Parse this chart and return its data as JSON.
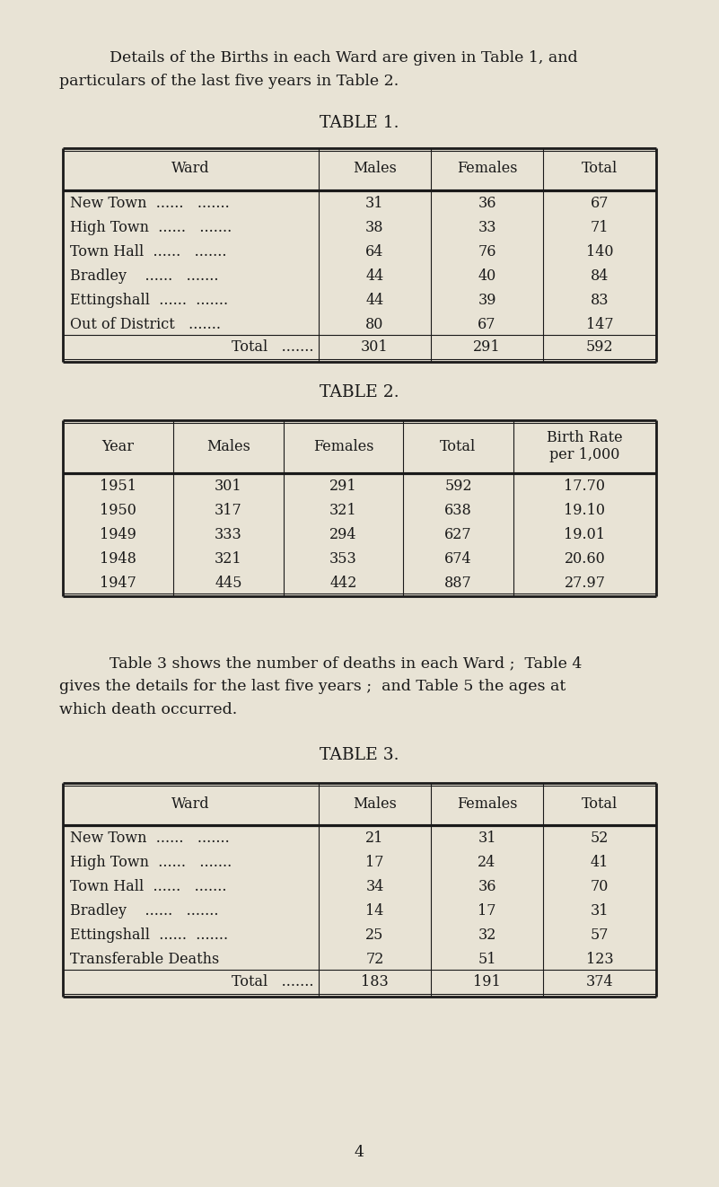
{
  "bg_color": "#e8e3d5",
  "text_color": "#1a1a1a",
  "intro_line1": "    Details of the Births in each Ward are given in Table 1, and",
  "intro_line2": "particulars of the last five years in Table 2.",
  "table1_title": "TABLE 1.",
  "table1_headers": [
    "Ward",
    "Males",
    "Females",
    "Total"
  ],
  "table1_col1_rows": [
    "New Town  ......   .......",
    "High Town  ......   .......",
    "Town Hall  ......   .......",
    "Bradley    ......   .......",
    "Ettingshall  ......  .......",
    "Out of District   ......."
  ],
  "table1_col2_rows": [
    "31",
    "38",
    "64",
    "44",
    "44",
    "80"
  ],
  "table1_col3_rows": [
    "36",
    "33",
    "76",
    "40",
    "39",
    "67"
  ],
  "table1_col4_rows": [
    "67",
    "71",
    "140",
    "84",
    "83",
    "147"
  ],
  "table1_total": [
    "Total   .......",
    "301",
    "291",
    "592"
  ],
  "table2_title": "TABLE 2.",
  "table2_headers": [
    "Year",
    "Males",
    "Females",
    "Total",
    "Birth Rate\nper 1,000"
  ],
  "table2_col1_rows": [
    "1951",
    "1950",
    "1949",
    "1948",
    "1947"
  ],
  "table2_col2_rows": [
    "301",
    "317",
    "333",
    "321",
    "445"
  ],
  "table2_col3_rows": [
    "291",
    "321",
    "294",
    "353",
    "442"
  ],
  "table2_col4_rows": [
    "592",
    "638",
    "627",
    "674",
    "887"
  ],
  "table2_col5_rows": [
    "17.70",
    "19.10",
    "19.01",
    "20.60",
    "27.97"
  ],
  "middle_line1": "    Table 3 shows the number of deaths in each Ward ;  Table 4",
  "middle_line2": "gives the details for the last five years ;  and Table 5 the ages at",
  "middle_line3": "which death occurred.",
  "table3_title": "TABLE 3.",
  "table3_headers": [
    "Ward",
    "Males",
    "Females",
    "Total"
  ],
  "table3_col1_rows": [
    "New Town  ......   .......",
    "High Town  ......   .......",
    "Town Hall  ......   .......",
    "Bradley    ......   .......",
    "Ettingshall  ......  .......",
    "Transferable Deaths"
  ],
  "table3_col2_rows": [
    "21",
    "17",
    "34",
    "14",
    "25",
    "72"
  ],
  "table3_col3_rows": [
    "31",
    "24",
    "36",
    "17",
    "32",
    "51"
  ],
  "table3_col4_rows": [
    "52",
    "41",
    "70",
    "31",
    "57",
    "123"
  ],
  "table3_total": [
    "Total   .......",
    "183",
    "191",
    "374"
  ],
  "page_number": "4",
  "font_size_body": 11.5,
  "font_size_title": 13.5
}
